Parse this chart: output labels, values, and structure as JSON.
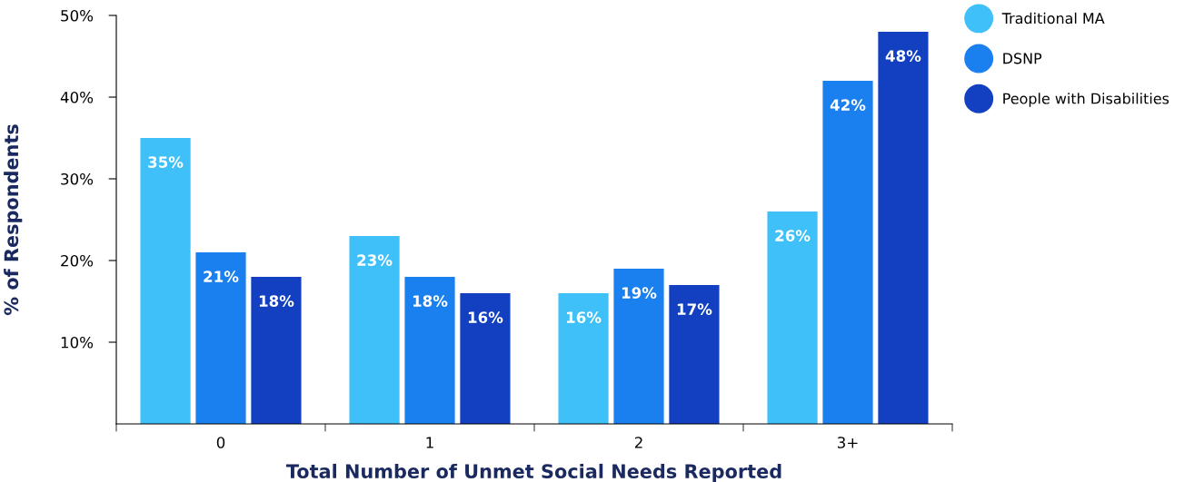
{
  "chart_data": {
    "type": "bar",
    "xlabel": "Total Number of Unmet Social Needs Reported",
    "ylabel": "% of Respondents",
    "categories": [
      "0",
      "1",
      "2",
      "3+"
    ],
    "series": [
      {
        "name": "Traditional MA",
        "color": "#40c0f8",
        "values": [
          35,
          23,
          16,
          26
        ],
        "value_labels": [
          "35%",
          "23%",
          "16%",
          "26%"
        ]
      },
      {
        "name": "DSNP",
        "color": "#1a80f0",
        "values": [
          21,
          18,
          19,
          42
        ],
        "value_labels": [
          "21%",
          "18%",
          "19%",
          "42%"
        ]
      },
      {
        "name": "People with Disabilities",
        "color": "#1240c0",
        "values": [
          18,
          16,
          17,
          48
        ],
        "value_labels": [
          "18%",
          "16%",
          "17%",
          "48%"
        ]
      }
    ],
    "ylim": [
      0,
      50
    ],
    "yticks": [
      {
        "value": 10,
        "label": "10%"
      },
      {
        "value": 20,
        "label": "20%"
      },
      {
        "value": 30,
        "label": "30%"
      },
      {
        "value": 40,
        "label": "40%"
      },
      {
        "value": 50,
        "label": "50%"
      }
    ],
    "grid": false,
    "legend": "top right",
    "marker": "circle"
  }
}
